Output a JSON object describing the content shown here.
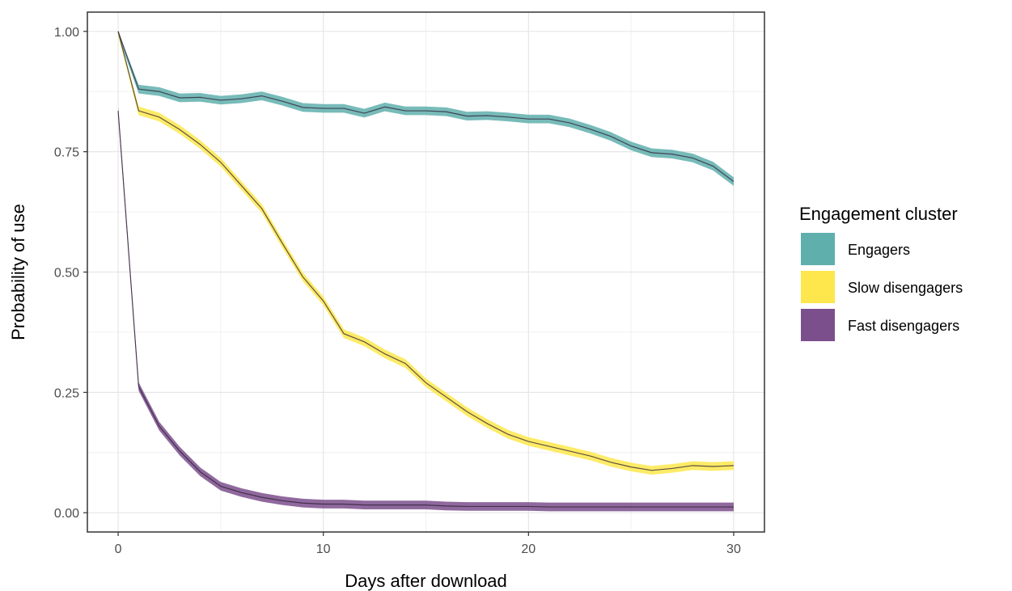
{
  "chart_data": {
    "type": "line",
    "xlabel": "Days after download",
    "ylabel": "Probability of use",
    "xlim": [
      -1.5,
      31.5
    ],
    "ylim": [
      -0.04,
      1.04
    ],
    "x_ticks": [
      0,
      10,
      20,
      30
    ],
    "x_tick_labels": [
      "0",
      "10",
      "20",
      "30"
    ],
    "y_ticks": [
      0,
      0.25,
      0.5,
      0.75,
      1.0
    ],
    "y_tick_labels": [
      "0.00",
      "0.25",
      "0.50",
      "0.75",
      "1.00"
    ],
    "grid": true,
    "legend": {
      "title": "Engagement cluster",
      "placement": "right"
    },
    "x": [
      0,
      1,
      2,
      3,
      4,
      5,
      6,
      7,
      8,
      9,
      10,
      11,
      12,
      13,
      14,
      15,
      16,
      17,
      18,
      19,
      20,
      21,
      22,
      23,
      24,
      25,
      26,
      27,
      28,
      29,
      30
    ],
    "series": [
      {
        "name": "Engagers",
        "color": "#5fafad",
        "start": [
          0,
          1.0
        ],
        "values": [
          1.0,
          0.88,
          0.875,
          0.862,
          0.863,
          0.857,
          0.86,
          0.866,
          0.855,
          0.842,
          0.84,
          0.84,
          0.83,
          0.843,
          0.835,
          0.835,
          0.833,
          0.824,
          0.825,
          0.822,
          0.818,
          0.818,
          0.81,
          0.797,
          0.782,
          0.762,
          0.748,
          0.745,
          0.737,
          0.72,
          0.688
        ]
      },
      {
        "name": "Slow disengagers",
        "color": "#fde74c",
        "start": [
          0,
          1.0
        ],
        "values": [
          1.0,
          0.835,
          0.822,
          0.796,
          0.765,
          0.728,
          0.68,
          0.632,
          0.56,
          0.49,
          0.44,
          0.372,
          0.355,
          0.33,
          0.31,
          0.27,
          0.24,
          0.21,
          0.185,
          0.163,
          0.148,
          0.138,
          0.128,
          0.118,
          0.105,
          0.095,
          0.088,
          0.092,
          0.098,
          0.096,
          0.098
        ]
      },
      {
        "name": "Fast disengagers",
        "color": "#7b4f8c",
        "start": [
          0,
          0.835
        ],
        "values": [
          0.835,
          0.262,
          0.18,
          0.128,
          0.085,
          0.055,
          0.042,
          0.032,
          0.025,
          0.02,
          0.018,
          0.018,
          0.016,
          0.016,
          0.016,
          0.016,
          0.014,
          0.013,
          0.013,
          0.013,
          0.013,
          0.012,
          0.012,
          0.012,
          0.012,
          0.012,
          0.012,
          0.012,
          0.012,
          0.012,
          0.012
        ]
      }
    ]
  }
}
